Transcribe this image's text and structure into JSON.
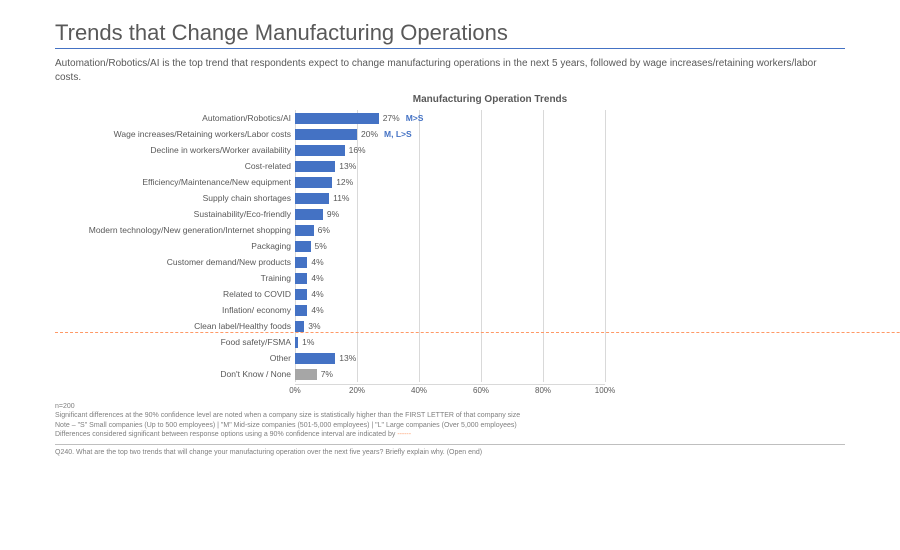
{
  "title": "Trends that Change Manufacturing Operations",
  "subtitle": "Automation/Robotics/AI is the top trend that respondents expect to change manufacturing operations in the next 5 years, followed by wage increases/retaining workers/labor costs.",
  "chart": {
    "type": "bar-horizontal",
    "title": "Manufacturing Operation Trends",
    "bar_color": "#4472c4",
    "gray_bar_color": "#a6a6a6",
    "grid_color": "#d9d9d9",
    "sig_color": "#4472c4",
    "dash_color": "#ff9966",
    "xmin": 0,
    "xmax": 100,
    "xtick_step": 20,
    "xtick_labels": [
      "0%",
      "20%",
      "40%",
      "60%",
      "80%",
      "100%"
    ],
    "divider_after_index": 13,
    "rows": [
      {
        "label": "Automation/Robotics/AI",
        "value": 27,
        "display": "27%",
        "sig": "M>S"
      },
      {
        "label": "Wage increases/Retaining workers/Labor costs",
        "value": 20,
        "display": "20%",
        "sig": "M, L>S"
      },
      {
        "label": "Decline in workers/Worker availability",
        "value": 16,
        "display": "16%"
      },
      {
        "label": "Cost-related",
        "value": 13,
        "display": "13%"
      },
      {
        "label": "Efficiency/Maintenance/New equipment",
        "value": 12,
        "display": "12%"
      },
      {
        "label": "Supply chain shortages",
        "value": 11,
        "display": "11%"
      },
      {
        "label": "Sustainability/Eco-friendly",
        "value": 9,
        "display": "9%"
      },
      {
        "label": "Modern technology/New generation/Internet shopping",
        "value": 6,
        "display": "6%"
      },
      {
        "label": "Packaging",
        "value": 5,
        "display": "5%"
      },
      {
        "label": "Customer demand/New products",
        "value": 4,
        "display": "4%"
      },
      {
        "label": "Training",
        "value": 4,
        "display": "4%"
      },
      {
        "label": "Related to COVID",
        "value": 4,
        "display": "4%"
      },
      {
        "label": "Inflation/ economy",
        "value": 4,
        "display": "4%"
      },
      {
        "label": "Clean label/Healthy foods",
        "value": 3,
        "display": "3%"
      },
      {
        "label": "Food safety/FSMA",
        "value": 1,
        "display": "1%"
      },
      {
        "label": "Other",
        "value": 13,
        "display": "13%"
      },
      {
        "label": "Don't Know /  None",
        "value": 7,
        "display": "7%",
        "gray": true
      }
    ]
  },
  "footnotes": {
    "n": "n=200",
    "line1": "Significant differences at the 90% confidence level are noted when a company size is statistically higher than the FIRST LETTER of that company size",
    "line2": "Note – \"S\" Small companies (Up to 500 employees) | \"M\" Mid-size companies (501-5,000 employees) | \"L\" Large companies (Over 5,000 employees)",
    "line3_prefix": "Differences considered significant between response options using a 90% confidence interval are indicated by ",
    "line3_dash": "- - - - - -",
    "question": "Q240. What are the top two trends that will change your manufacturing operation over the next five years? Briefly explain why. (Open end)"
  }
}
